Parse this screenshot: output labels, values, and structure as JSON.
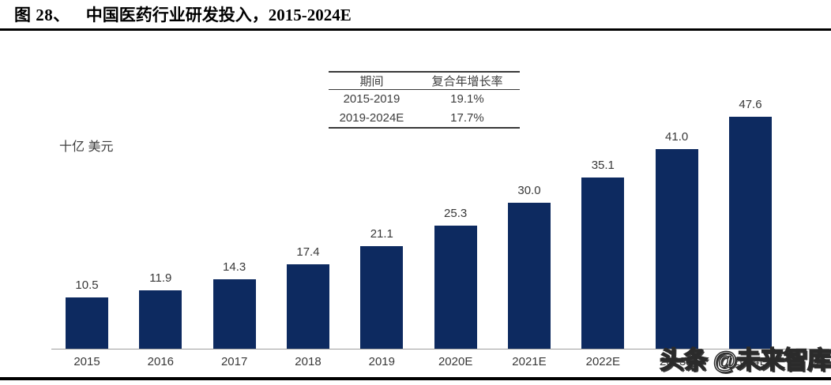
{
  "figure": {
    "label": "图 28、",
    "title": "中国医药行业研发投入，2015-2024E"
  },
  "y_axis_unit": "十亿 美元",
  "inset_table": {
    "headers": [
      "期间",
      "复合年增长率"
    ],
    "rows": [
      {
        "period": "2015-2019",
        "cagr": "19.1%"
      },
      {
        "period": "2019-2024E",
        "cagr": "17.7%"
      }
    ]
  },
  "watermark": "头条 @未来智库",
  "colors": {
    "bar": "#0d2a60",
    "label_text": "#383838",
    "axis_line": "#9e9e9e",
    "title_text": "#000000"
  },
  "chart_data": {
    "type": "bar",
    "title": "中国医药行业研发投入，2015-2024E",
    "categories": [
      "2015",
      "2016",
      "2017",
      "2018",
      "2019",
      "2020E",
      "2021E",
      "2022E",
      "2023E",
      "2024E"
    ],
    "values": [
      10.5,
      11.9,
      14.3,
      17.4,
      21.1,
      25.3,
      30.0,
      35.1,
      41.0,
      47.6
    ],
    "xlabel": "",
    "ylabel": "十亿 美元",
    "ylim": [
      0,
      50
    ],
    "grid": false,
    "legend": false,
    "data_labels": true,
    "annotations": [
      {
        "period": "2015-2019",
        "cagr_pct": 19.1
      },
      {
        "period": "2019-2024E",
        "cagr_pct": 17.7
      }
    ]
  }
}
